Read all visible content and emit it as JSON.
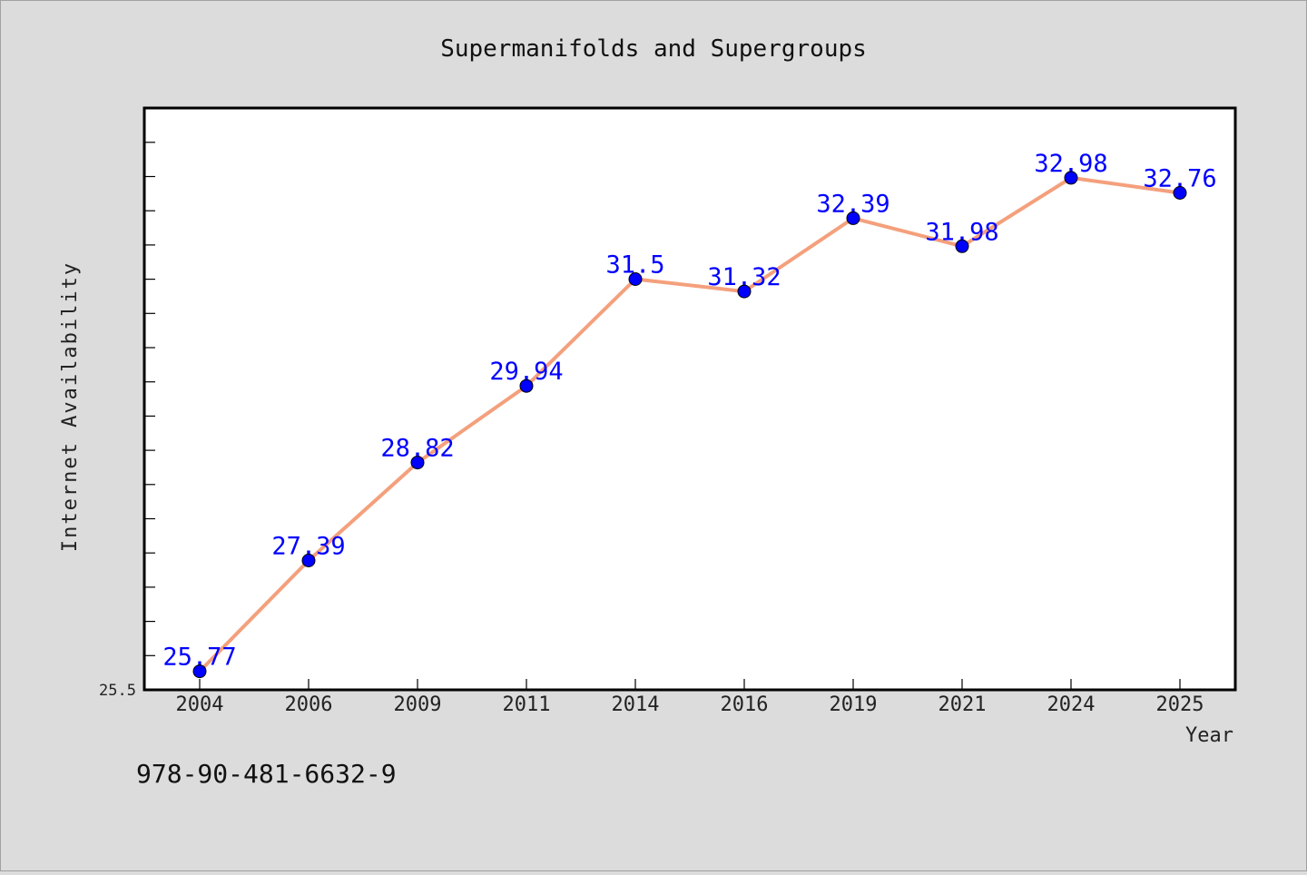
{
  "chart_data": {
    "type": "line",
    "title": "Supermanifolds and Supergroups",
    "xlabel": "Year",
    "ylabel": "Internet Availability",
    "categories": [
      "2004",
      "2006",
      "2009",
      "2011",
      "2014",
      "2016",
      "2019",
      "2021",
      "2024",
      "2025"
    ],
    "series": [
      {
        "values": [
          25.77,
          27.39,
          28.82,
          29.94,
          31.5,
          31.32,
          32.39,
          31.98,
          32.98,
          32.76
        ],
        "data_labels": [
          "25.77",
          "27.39",
          "28.82",
          "29.94",
          "31.5",
          "31.32",
          "32.39",
          "31.98",
          "32.98",
          "32.76"
        ]
      }
    ],
    "ylim": [
      25.5,
      34.0
    ],
    "y_tick_label": "25.5",
    "grid": false,
    "legend": "none",
    "colors": {
      "line": "#f4a07c",
      "marker": "#0000ff",
      "data_label": "#0000ff",
      "plot_background": "#ffffff",
      "figure_background": "#dcdcdc"
    }
  },
  "footer": {
    "isbn": "978-90-481-6632-9"
  }
}
